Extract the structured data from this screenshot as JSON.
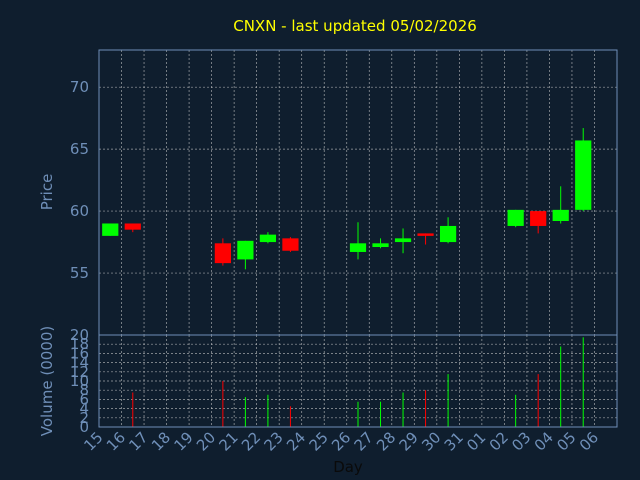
{
  "chart_data": {
    "type": "candlestick",
    "title": "CNXN - last updated 05/02/2026",
    "xlabel": "Day",
    "price_panel": {
      "ylabel": "Price",
      "ylim": [
        50,
        73
      ],
      "yticks": [
        55,
        60,
        65,
        70
      ]
    },
    "volume_panel": {
      "ylabel": "Volume (0000)",
      "ylim": [
        0,
        20
      ],
      "yticks": [
        0,
        2,
        4,
        6,
        8,
        10,
        12,
        14,
        16,
        18,
        20
      ]
    },
    "x_tick_labels": [
      "15",
      "16",
      "17",
      "18",
      "19",
      "20",
      "21",
      "22",
      "23",
      "24",
      "25",
      "26",
      "27",
      "28",
      "29",
      "30",
      "31",
      "01",
      "02",
      "03",
      "04",
      "05",
      "06"
    ],
    "colors": {
      "up": "#00ff00",
      "down": "#ff0000",
      "background": "#0f1e2e",
      "grid": "#d0d0d0",
      "title": "#ffff00",
      "axis_text": "#6f8fb8"
    },
    "candles": [
      {
        "x": 0,
        "open": 58.0,
        "close": 59.0,
        "high": 59.0,
        "low": 58.0,
        "volume": 0
      },
      {
        "x": 1,
        "open": 59.0,
        "close": 58.5,
        "high": 59.0,
        "low": 58.3,
        "volume": 7.5
      },
      {
        "x": 5,
        "open": 57.4,
        "close": 55.8,
        "high": 57.8,
        "low": 55.6,
        "volume": 10
      },
      {
        "x": 6,
        "open": 56.1,
        "close": 57.6,
        "high": 57.6,
        "low": 55.3,
        "volume": 6.5
      },
      {
        "x": 7,
        "open": 57.5,
        "close": 58.1,
        "high": 58.3,
        "low": 57.4,
        "volume": 7
      },
      {
        "x": 8,
        "open": 57.8,
        "close": 56.8,
        "high": 57.9,
        "low": 56.7,
        "volume": 4.5
      },
      {
        "x": 11,
        "open": 56.7,
        "close": 57.4,
        "high": 59.1,
        "low": 56.1,
        "volume": 5.5
      },
      {
        "x": 12,
        "open": 57.1,
        "close": 57.4,
        "high": 57.8,
        "low": 57.0,
        "volume": 5.5
      },
      {
        "x": 13,
        "open": 57.5,
        "close": 57.8,
        "high": 58.6,
        "low": 56.6,
        "volume": 7.5
      },
      {
        "x": 14,
        "open": 58.2,
        "close": 58.0,
        "high": 58.2,
        "low": 57.3,
        "volume": 8
      },
      {
        "x": 15,
        "open": 57.5,
        "close": 58.8,
        "high": 59.5,
        "low": 57.4,
        "volume": 11.5
      },
      {
        "x": 18,
        "open": 58.8,
        "close": 60.1,
        "high": 60.1,
        "low": 58.7,
        "volume": 7
      },
      {
        "x": 19,
        "open": 60.0,
        "close": 58.8,
        "high": 60.0,
        "low": 58.2,
        "volume": 11.5
      },
      {
        "x": 20,
        "open": 59.2,
        "close": 60.1,
        "high": 62.0,
        "low": 59.0,
        "volume": 17.5
      },
      {
        "x": 21,
        "open": 60.1,
        "close": 65.7,
        "high": 66.7,
        "low": 60.0,
        "volume": 19.5
      }
    ]
  }
}
